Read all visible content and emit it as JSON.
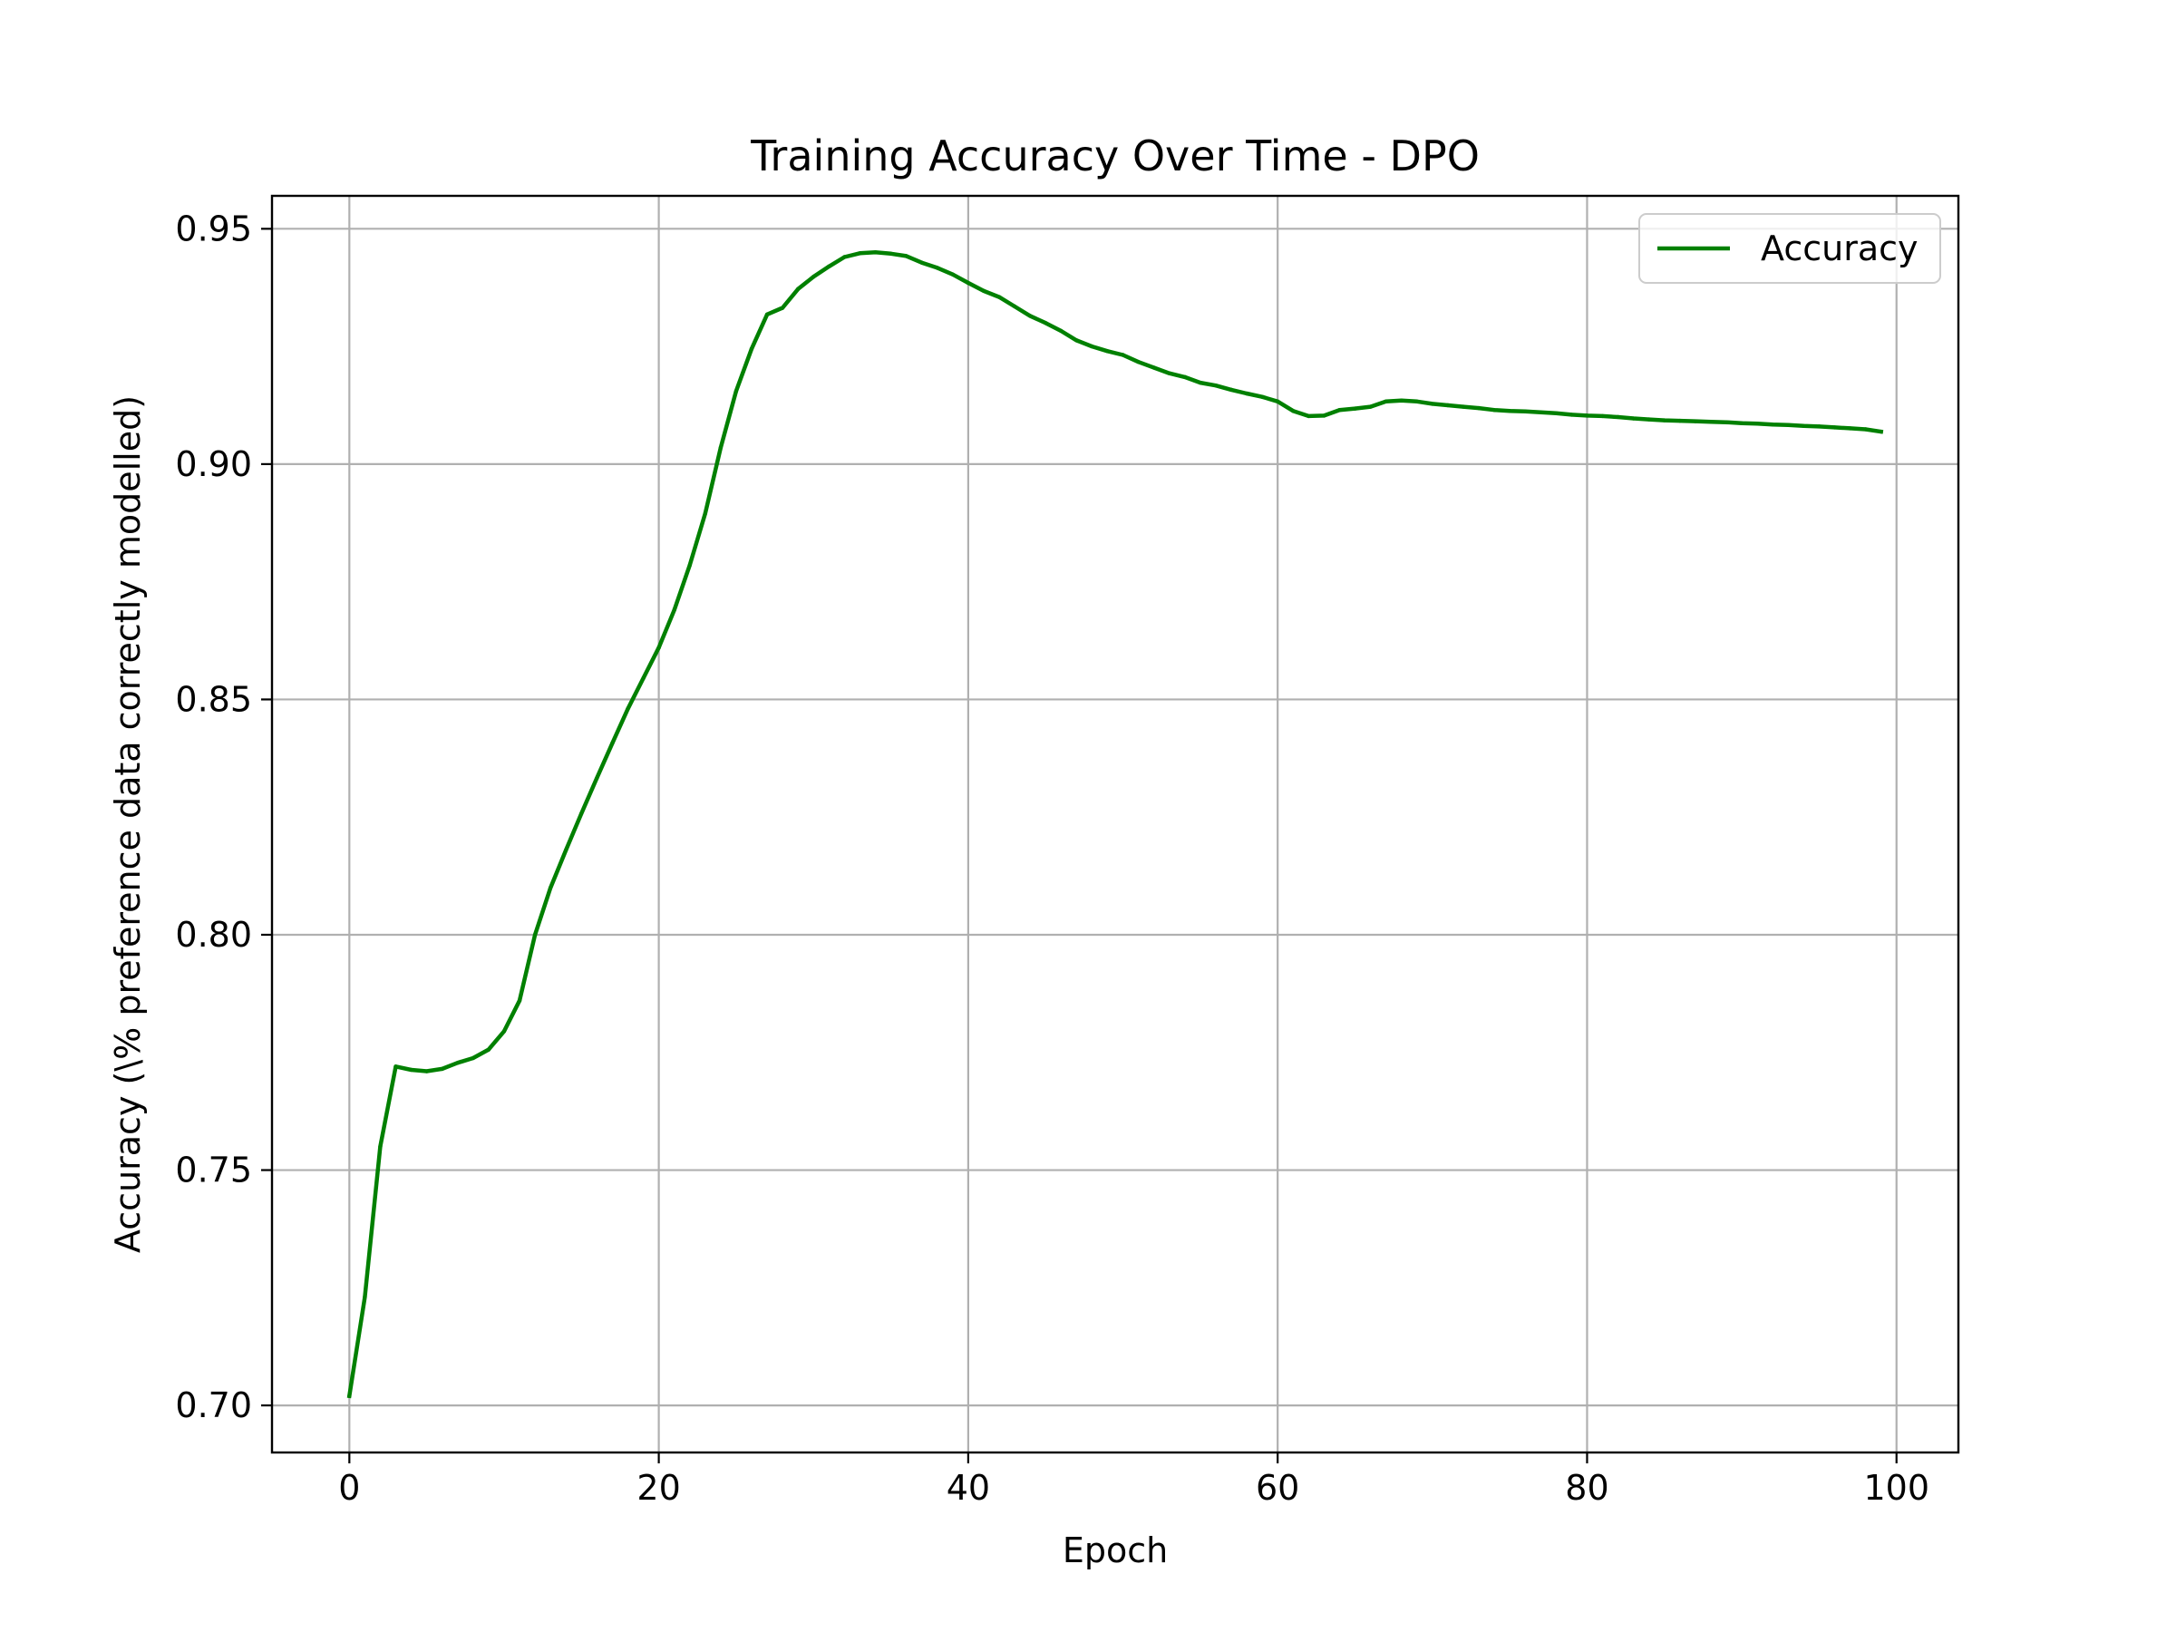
{
  "chart_data": {
    "type": "line",
    "title": "Training Accuracy Over Time - DPO",
    "xlabel": "Epoch",
    "ylabel": "Accuracy (\\% preference data correctly modelled)",
    "xlim": [
      -5,
      104
    ],
    "ylim": [
      0.69,
      0.957
    ],
    "xticks": [
      0,
      20,
      40,
      60,
      80,
      100
    ],
    "xtick_labels": [
      "0",
      "20",
      "40",
      "60",
      "80",
      "100"
    ],
    "yticks": [
      0.7,
      0.75,
      0.8,
      0.85,
      0.9,
      0.95
    ],
    "ytick_labels": [
      "0.70",
      "0.75",
      "0.80",
      "0.85",
      "0.90",
      "0.95"
    ],
    "grid": true,
    "legend_position": "upper right",
    "series": [
      {
        "name": "Accuracy",
        "color": "#008000",
        "x": [
          0,
          1,
          2,
          3,
          4,
          5,
          6,
          7,
          8,
          9,
          10,
          11,
          12,
          13,
          14,
          15,
          16,
          17,
          18,
          19,
          20,
          21,
          22,
          23,
          24,
          25,
          26,
          27,
          28,
          29,
          30,
          31,
          32,
          33,
          34,
          35,
          36,
          37,
          38,
          39,
          40,
          41,
          42,
          43,
          44,
          45,
          46,
          47,
          48,
          49,
          50,
          51,
          52,
          53,
          54,
          55,
          56,
          57,
          58,
          59,
          60,
          61,
          62,
          63,
          64,
          65,
          66,
          67,
          68,
          69,
          70,
          71,
          72,
          73,
          74,
          75,
          76,
          77,
          78,
          79,
          80,
          81,
          82,
          83,
          84,
          85,
          86,
          87,
          88,
          89,
          90,
          91,
          92,
          93,
          94,
          95,
          96,
          97,
          98,
          99
        ],
        "y": [
          0.702,
          0.723,
          0.755,
          0.772,
          0.7713,
          0.771,
          0.7715,
          0.7728,
          0.7738,
          0.7756,
          0.7795,
          0.786,
          0.8,
          0.81,
          0.818,
          0.8258,
          0.8333,
          0.8407,
          0.848,
          0.8545,
          0.861,
          0.869,
          0.8785,
          0.8895,
          0.9035,
          0.9155,
          0.9245,
          0.9318,
          0.9332,
          0.9372,
          0.9398,
          0.942,
          0.944,
          0.9448,
          0.945,
          0.9447,
          0.9442,
          0.9428,
          0.9417,
          0.9403,
          0.9385,
          0.9368,
          0.9355,
          0.9335,
          0.9315,
          0.93,
          0.9283,
          0.9263,
          0.925,
          0.924,
          0.9232,
          0.9217,
          0.9205,
          0.9193,
          0.9185,
          0.9173,
          0.9167,
          0.9158,
          0.915,
          0.9143,
          0.9133,
          0.9113,
          0.9102,
          0.9103,
          0.9115,
          0.9118,
          0.9122,
          0.9133,
          0.9135,
          0.9133,
          0.9128,
          0.9125,
          0.9122,
          0.9119,
          0.9115,
          0.9113,
          0.9112,
          0.911,
          0.9108,
          0.9105,
          0.9103,
          0.9102,
          0.91,
          0.9097,
          0.9095,
          0.9093,
          0.9092,
          0.9091,
          0.909,
          0.9089,
          0.9087,
          0.9086,
          0.9084,
          0.9083,
          0.9081,
          0.908,
          0.9078,
          0.9076,
          0.9074,
          0.9069
        ]
      }
    ]
  }
}
